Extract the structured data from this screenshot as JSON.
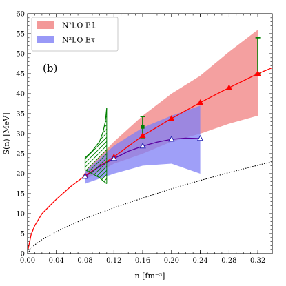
{
  "chart_data": {
    "type": "line",
    "panel_label": "(b)",
    "xlabel": "n [fm⁻³]",
    "ylabel": "S(n) [MeV]",
    "xlim": [
      0.0,
      0.34
    ],
    "ylim": [
      0,
      60
    ],
    "x_ticks": [
      "0.00",
      "0.04",
      "0.08",
      "0.12",
      "0.16",
      "0.20",
      "0.24",
      "0.28",
      "0.32"
    ],
    "y_ticks": [
      "0",
      "5",
      "10",
      "15",
      "20",
      "25",
      "30",
      "35",
      "40",
      "45",
      "50",
      "55",
      "60"
    ],
    "legend_position": "top-left",
    "legend": [
      {
        "label": "N²LO E𝟙",
        "color": "#f08080"
      },
      {
        "label": "N²LO Eτ",
        "color": "#7f7ff5"
      }
    ],
    "series": [
      {
        "name": "N²LO E𝟙",
        "color": "#ff0000",
        "band_color": "#f08080",
        "points": [
          [
            0.08,
            19.5
          ],
          [
            0.12,
            24.2
          ],
          [
            0.16,
            29.5
          ],
          [
            0.2,
            33.8
          ],
          [
            0.24,
            37.8
          ],
          [
            0.28,
            41.5
          ],
          [
            0.32,
            45.0
          ]
        ],
        "curve": [
          [
            0.0,
            0.5
          ],
          [
            0.005,
            4.8
          ],
          [
            0.01,
            7.0
          ],
          [
            0.02,
            10.0
          ],
          [
            0.04,
            13.6
          ],
          [
            0.06,
            16.8
          ],
          [
            0.08,
            19.5
          ],
          [
            0.12,
            24.2
          ],
          [
            0.16,
            29.5
          ],
          [
            0.2,
            33.8
          ],
          [
            0.24,
            37.8
          ],
          [
            0.28,
            41.5
          ],
          [
            0.32,
            45.0
          ],
          [
            0.34,
            46.5
          ]
        ],
        "band_upper": [
          [
            0.08,
            20.5
          ],
          [
            0.12,
            28.0
          ],
          [
            0.16,
            34.5
          ],
          [
            0.2,
            40.0
          ],
          [
            0.24,
            44.5
          ],
          [
            0.28,
            50.5
          ],
          [
            0.32,
            56.0
          ]
        ],
        "band_lower": [
          [
            0.08,
            18.5
          ],
          [
            0.12,
            22.5
          ],
          [
            0.16,
            25.0
          ],
          [
            0.2,
            28.0
          ],
          [
            0.24,
            30.0
          ],
          [
            0.28,
            32.5
          ],
          [
            0.32,
            34.5
          ]
        ]
      },
      {
        "name": "N²LO Eτ",
        "color": "#5a00a0",
        "band_color": "#7f7ff5",
        "points": [
          [
            0.08,
            19.3
          ],
          [
            0.12,
            23.8
          ],
          [
            0.16,
            26.9
          ],
          [
            0.2,
            28.6
          ],
          [
            0.24,
            28.8
          ]
        ],
        "curve": [
          [
            0.08,
            19.3
          ],
          [
            0.1,
            21.8
          ],
          [
            0.12,
            23.8
          ],
          [
            0.14,
            25.6
          ],
          [
            0.16,
            26.9
          ],
          [
            0.18,
            27.9
          ],
          [
            0.2,
            28.6
          ],
          [
            0.22,
            28.9
          ],
          [
            0.24,
            28.8
          ]
        ],
        "band_upper": [
          [
            0.08,
            20.5
          ],
          [
            0.12,
            27.0
          ],
          [
            0.16,
            31.5
          ],
          [
            0.2,
            34.5
          ],
          [
            0.24,
            37.0
          ]
        ],
        "band_lower": [
          [
            0.08,
            17.5
          ],
          [
            0.12,
            20.0
          ],
          [
            0.16,
            22.0
          ],
          [
            0.2,
            22.5
          ],
          [
            0.24,
            20.0
          ]
        ]
      }
    ],
    "free_fermi_gas": [
      [
        0.0,
        0.0
      ],
      [
        0.005,
        1.4
      ],
      [
        0.01,
        2.2
      ],
      [
        0.02,
        3.5
      ],
      [
        0.04,
        5.5
      ],
      [
        0.08,
        8.8
      ],
      [
        0.12,
        11.5
      ],
      [
        0.16,
        13.9
      ],
      [
        0.2,
        16.2
      ],
      [
        0.24,
        18.3
      ],
      [
        0.28,
        20.3
      ],
      [
        0.32,
        22.1
      ],
      [
        0.34,
        23.0
      ]
    ],
    "free_fermi_gas_color": "#000000",
    "empirical_region": {
      "color": "#008000",
      "left": [
        [
          0.08,
          21.0
        ],
        [
          0.08,
          24.0
        ],
        [
          0.089,
          25.5
        ]
      ],
      "upper": [
        [
          0.089,
          25.5
        ],
        [
          0.1,
          28.0
        ],
        [
          0.105,
          30.5
        ],
        [
          0.108,
          33.0
        ],
        [
          0.11,
          36.5
        ]
      ],
      "lower": [
        [
          0.08,
          21.0
        ],
        [
          0.09,
          20.0
        ],
        [
          0.1,
          19.0
        ],
        [
          0.105,
          18.2
        ],
        [
          0.11,
          17.5
        ]
      ],
      "right_x": 0.11
    },
    "error_bars": [
      {
        "x": 0.16,
        "y": 31.7,
        "low": 29.0,
        "high": 34.3,
        "marker": "square",
        "color": "#008000"
      },
      {
        "x": 0.32,
        "y": 45.5,
        "low": 45.0,
        "high": 54.0,
        "marker": "none",
        "color": "#008000"
      }
    ]
  }
}
